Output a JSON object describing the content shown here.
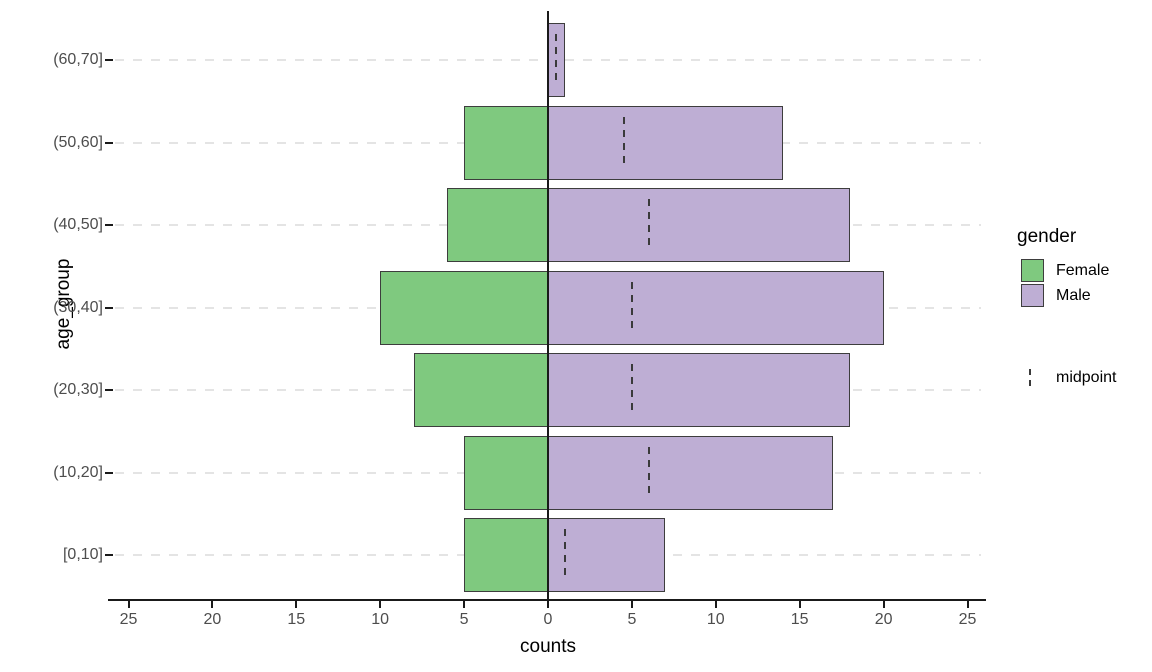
{
  "chart_data": {
    "type": "bar",
    "variant": "population_pyramid",
    "orientation": "horizontal",
    "title": "",
    "xlabel": "counts",
    "ylabel": "age_group",
    "categories_top_to_bottom": [
      "(60,70]",
      "(50,60]",
      "(40,50]",
      "(30,40]",
      "(20,30]",
      "(10,20]",
      "[0,10]"
    ],
    "series": [
      {
        "name": "Female",
        "direction": "left",
        "color": "#7FC97F",
        "values": [
          0,
          5,
          6,
          10,
          8,
          5,
          5
        ]
      },
      {
        "name": "Male",
        "direction": "right",
        "color": "#BEAED4",
        "values": [
          1,
          14,
          18,
          20,
          18,
          17,
          7
        ]
      }
    ],
    "midpoints": [
      0.5,
      4.5,
      6,
      5,
      5,
      6,
      1
    ],
    "x_ticks": [
      -25,
      -20,
      -15,
      -10,
      -5,
      0,
      5,
      10,
      15,
      20,
      25
    ],
    "x_tick_labels": [
      "25",
      "20",
      "15",
      "10",
      "5",
      "0",
      "5",
      "10",
      "15",
      "20",
      "25"
    ],
    "xlim": [
      -26,
      26
    ],
    "grid": "horizontal-dashed",
    "zero_line": 0,
    "legend": {
      "position": "right",
      "gender_title": "gender",
      "entries": [
        {
          "label": "Female",
          "color": "#7FC97F"
        },
        {
          "label": "Male",
          "color": "#BEAED4"
        }
      ],
      "midpoint_label": "midpoint"
    }
  },
  "colors": {
    "female": "#7FC97F",
    "male": "#BEAED4",
    "bar_border": "#3d3d3d",
    "grid": "#e4e4e4",
    "axis_line": "#1a1a1a",
    "tick_text": "#4d4d4d",
    "title_text": "#000000",
    "midpoint_line": "#3a3a3a",
    "background": "#ffffff"
  }
}
